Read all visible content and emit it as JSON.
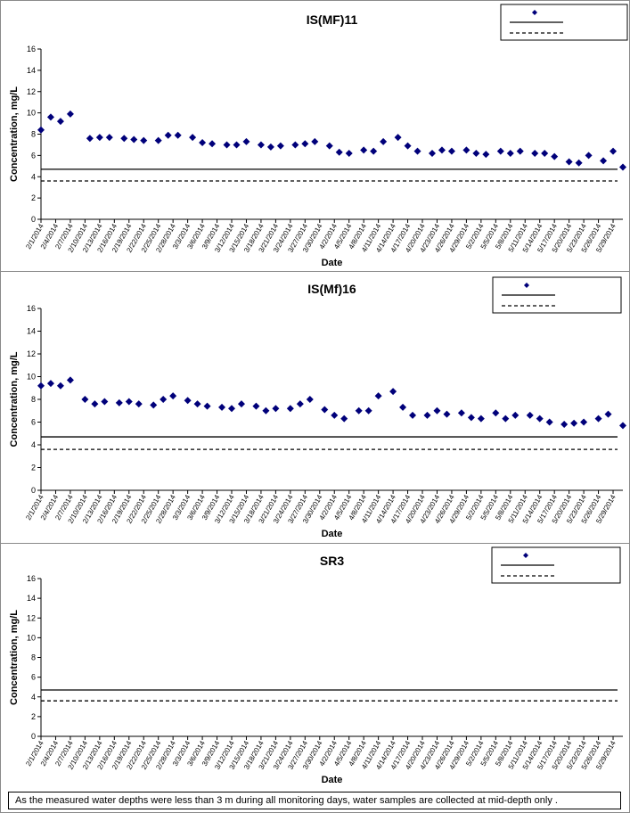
{
  "dates": [
    "2/1/2014",
    "2/4/2014",
    "2/7/2014",
    "2/10/2014",
    "2/13/2014",
    "2/16/2014",
    "2/19/2014",
    "2/22/2014",
    "2/25/2014",
    "2/28/2014",
    "3/3/2014",
    "3/6/2014",
    "3/9/2014",
    "3/12/2014",
    "3/15/2014",
    "3/18/2014",
    "3/21/2014",
    "3/24/2014",
    "3/27/2014",
    "3/30/2014",
    "4/2/2014",
    "4/5/2014",
    "4/8/2014",
    "4/11/2014",
    "4/14/2014",
    "4/17/2014",
    "4/20/2014",
    "4/23/2014",
    "4/26/2014",
    "4/29/2014",
    "5/2/2014",
    "5/5/2014",
    "5/8/2014",
    "5/11/2014",
    "5/14/2014",
    "5/17/2014",
    "5/20/2014",
    "5/23/2014",
    "5/26/2014",
    "5/29/2014"
  ],
  "chart_data": [
    {
      "type": "scatter",
      "title": "IS(MF)11",
      "xlabel": "Date",
      "ylabel": "Concentration, mg/L",
      "ylim": [
        0,
        16
      ],
      "yticks": [
        "0",
        "2",
        "4",
        "6",
        "8",
        "10",
        "12",
        "14",
        "16"
      ],
      "xlim": [
        "2/1/2014",
        "5/31/2014"
      ],
      "grid": false,
      "legend_position": "top-right",
      "marker_color": "#00007a",
      "series": [
        {
          "marker": "diamond",
          "points": [
            {
              "x": "2/1/2014",
              "y": 8.4
            },
            {
              "x": "2/3/2014",
              "y": 9.6
            },
            {
              "x": "2/5/2014",
              "y": 9.2
            },
            {
              "x": "2/7/2014",
              "y": 9.9
            },
            {
              "x": "2/11/2014",
              "y": 7.6
            },
            {
              "x": "2/13/2014",
              "y": 7.7
            },
            {
              "x": "2/15/2014",
              "y": 7.7
            },
            {
              "x": "2/18/2014",
              "y": 7.6
            },
            {
              "x": "2/20/2014",
              "y": 7.5
            },
            {
              "x": "2/22/2014",
              "y": 7.4
            },
            {
              "x": "2/25/2014",
              "y": 7.4
            },
            {
              "x": "2/27/2014",
              "y": 7.9
            },
            {
              "x": "3/1/2014",
              "y": 7.9
            },
            {
              "x": "3/4/2014",
              "y": 7.7
            },
            {
              "x": "3/6/2014",
              "y": 7.2
            },
            {
              "x": "3/8/2014",
              "y": 7.1
            },
            {
              "x": "3/11/2014",
              "y": 7.0
            },
            {
              "x": "3/13/2014",
              "y": 7.0
            },
            {
              "x": "3/15/2014",
              "y": 7.3
            },
            {
              "x": "3/18/2014",
              "y": 7.0
            },
            {
              "x": "3/20/2014",
              "y": 6.8
            },
            {
              "x": "3/22/2014",
              "y": 6.9
            },
            {
              "x": "3/25/2014",
              "y": 7.0
            },
            {
              "x": "3/27/2014",
              "y": 7.1
            },
            {
              "x": "3/29/2014",
              "y": 7.3
            },
            {
              "x": "4/1/2014",
              "y": 6.9
            },
            {
              "x": "4/3/2014",
              "y": 6.3
            },
            {
              "x": "4/5/2014",
              "y": 6.2
            },
            {
              "x": "4/8/2014",
              "y": 6.5
            },
            {
              "x": "4/10/2014",
              "y": 6.4
            },
            {
              "x": "4/12/2014",
              "y": 7.3
            },
            {
              "x": "4/15/2014",
              "y": 7.7
            },
            {
              "x": "4/17/2014",
              "y": 6.9
            },
            {
              "x": "4/19/2014",
              "y": 6.4
            },
            {
              "x": "4/22/2014",
              "y": 6.2
            },
            {
              "x": "4/24/2014",
              "y": 6.5
            },
            {
              "x": "4/26/2014",
              "y": 6.4
            },
            {
              "x": "4/29/2014",
              "y": 6.5
            },
            {
              "x": "5/1/2014",
              "y": 6.2
            },
            {
              "x": "5/3/2014",
              "y": 6.1
            },
            {
              "x": "5/6/2014",
              "y": 6.4
            },
            {
              "x": "5/8/2014",
              "y": 6.2
            },
            {
              "x": "5/10/2014",
              "y": 6.4
            },
            {
              "x": "5/13/2014",
              "y": 6.2
            },
            {
              "x": "5/15/2014",
              "y": 6.2
            },
            {
              "x": "5/17/2014",
              "y": 5.9
            },
            {
              "x": "5/20/2014",
              "y": 5.4
            },
            {
              "x": "5/22/2014",
              "y": 5.3
            },
            {
              "x": "5/24/2014",
              "y": 6.0
            },
            {
              "x": "5/27/2014",
              "y": 5.5
            },
            {
              "x": "5/29/2014",
              "y": 6.4
            },
            {
              "x": "5/31/2014",
              "y": 4.9
            }
          ]
        }
      ],
      "reference_lines": [
        {
          "y": 4.7,
          "style": "solid"
        },
        {
          "y": 3.6,
          "style": "dashed"
        }
      ]
    },
    {
      "type": "scatter",
      "title": "IS(Mf)16",
      "xlabel": "Date",
      "ylabel": "Concentration, mg/L",
      "ylim": [
        0,
        16
      ],
      "yticks": [
        "0",
        "2",
        "4",
        "6",
        "8",
        "10",
        "12",
        "14",
        "16"
      ],
      "xlim": [
        "2/1/2014",
        "5/31/2014"
      ],
      "grid": false,
      "legend_position": "top-right",
      "marker_color": "#00007a",
      "series": [
        {
          "marker": "diamond",
          "points": [
            {
              "x": "2/1/2014",
              "y": 9.2
            },
            {
              "x": "2/3/2014",
              "y": 9.4
            },
            {
              "x": "2/5/2014",
              "y": 9.2
            },
            {
              "x": "2/7/2014",
              "y": 9.7
            },
            {
              "x": "2/10/2014",
              "y": 8.0
            },
            {
              "x": "2/12/2014",
              "y": 7.6
            },
            {
              "x": "2/14/2014",
              "y": 7.8
            },
            {
              "x": "2/17/2014",
              "y": 7.7
            },
            {
              "x": "2/19/2014",
              "y": 7.8
            },
            {
              "x": "2/21/2014",
              "y": 7.6
            },
            {
              "x": "2/24/2014",
              "y": 7.5
            },
            {
              "x": "2/26/2014",
              "y": 8.0
            },
            {
              "x": "2/28/2014",
              "y": 8.3
            },
            {
              "x": "3/3/2014",
              "y": 7.9
            },
            {
              "x": "3/5/2014",
              "y": 7.6
            },
            {
              "x": "3/7/2014",
              "y": 7.4
            },
            {
              "x": "3/10/2014",
              "y": 7.3
            },
            {
              "x": "3/12/2014",
              "y": 7.2
            },
            {
              "x": "3/14/2014",
              "y": 7.6
            },
            {
              "x": "3/17/2014",
              "y": 7.4
            },
            {
              "x": "3/19/2014",
              "y": 7.0
            },
            {
              "x": "3/21/2014",
              "y": 7.2
            },
            {
              "x": "3/24/2014",
              "y": 7.2
            },
            {
              "x": "3/26/2014",
              "y": 7.6
            },
            {
              "x": "3/28/2014",
              "y": 8.0
            },
            {
              "x": "3/31/2014",
              "y": 7.1
            },
            {
              "x": "4/2/2014",
              "y": 6.6
            },
            {
              "x": "4/4/2014",
              "y": 6.3
            },
            {
              "x": "4/7/2014",
              "y": 7.0
            },
            {
              "x": "4/9/2014",
              "y": 7.0
            },
            {
              "x": "4/11/2014",
              "y": 8.3
            },
            {
              "x": "4/14/2014",
              "y": 8.7
            },
            {
              "x": "4/16/2014",
              "y": 7.3
            },
            {
              "x": "4/18/2014",
              "y": 6.6
            },
            {
              "x": "4/21/2014",
              "y": 6.6
            },
            {
              "x": "4/23/2014",
              "y": 7.0
            },
            {
              "x": "4/25/2014",
              "y": 6.7
            },
            {
              "x": "4/28/2014",
              "y": 6.8
            },
            {
              "x": "4/30/2014",
              "y": 6.4
            },
            {
              "x": "5/2/2014",
              "y": 6.3
            },
            {
              "x": "5/5/2014",
              "y": 6.8
            },
            {
              "x": "5/7/2014",
              "y": 6.3
            },
            {
              "x": "5/9/2014",
              "y": 6.6
            },
            {
              "x": "5/12/2014",
              "y": 6.6
            },
            {
              "x": "5/14/2014",
              "y": 6.3
            },
            {
              "x": "5/16/2014",
              "y": 6.0
            },
            {
              "x": "5/19/2014",
              "y": 5.8
            },
            {
              "x": "5/21/2014",
              "y": 5.9
            },
            {
              "x": "5/23/2014",
              "y": 6.0
            },
            {
              "x": "5/26/2014",
              "y": 6.3
            },
            {
              "x": "5/28/2014",
              "y": 6.7
            },
            {
              "x": "5/31/2014",
              "y": 5.7
            }
          ]
        }
      ],
      "reference_lines": [
        {
          "y": 4.7,
          "style": "solid"
        },
        {
          "y": 3.6,
          "style": "dashed"
        }
      ]
    },
    {
      "type": "scatter",
      "title": "SR3",
      "xlabel": "Date",
      "ylabel": "Concentration, mg/L",
      "ylim": [
        0,
        16
      ],
      "yticks": [
        "0",
        "2",
        "4",
        "6",
        "8",
        "10",
        "12",
        "14",
        "16"
      ],
      "xlim": [
        "2/1/2014",
        "5/31/2014"
      ],
      "grid": false,
      "legend_position": "top-right",
      "marker_color": "#00007a",
      "series": [
        {
          "marker": "diamond",
          "points": []
        }
      ],
      "reference_lines": [
        {
          "y": 4.7,
          "style": "solid"
        },
        {
          "y": 3.6,
          "style": "dashed"
        }
      ]
    }
  ],
  "footnote": "As the measured water depths were less than 3 m during all monitoring days, water samples are collected  at mid-depth only ."
}
